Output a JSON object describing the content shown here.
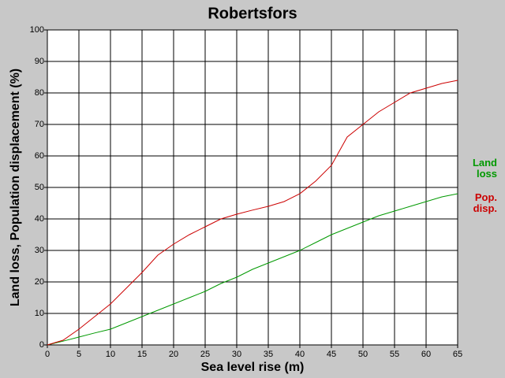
{
  "chart_data": {
    "type": "line",
    "title": "Robertsfors",
    "x_label": "Sea level rise (m)",
    "y_label": "Land loss, Population displacement (%)",
    "x": [
      0,
      2.5,
      5,
      7.5,
      10,
      12.5,
      15,
      17.5,
      20,
      22.5,
      25,
      27.5,
      30,
      32.5,
      35,
      37.5,
      40,
      42.5,
      45,
      47.5,
      50,
      52.5,
      55,
      57.5,
      60,
      62.5,
      65
    ],
    "series": [
      {
        "name": "Land loss",
        "color": "#009900",
        "values": [
          0,
          1.2,
          2.5,
          3.8,
          5,
          7,
          9,
          11,
          13,
          15,
          17,
          19.5,
          21.5,
          24,
          26,
          28,
          30,
          32.5,
          35,
          37,
          39,
          41,
          42.5,
          44,
          45.5,
          47,
          48
        ]
      },
      {
        "name": "Pop. disp.",
        "color": "#cc0000",
        "values": [
          0,
          1.5,
          5,
          9,
          13,
          18,
          23,
          28.5,
          32,
          35,
          37.5,
          40,
          41.5,
          42.8,
          44,
          45.5,
          48,
          52,
          57,
          66,
          70,
          74,
          77,
          80,
          81.5,
          83,
          84
        ]
      }
    ],
    "xlim": [
      0,
      65
    ],
    "xticks": [
      0,
      5,
      10,
      15,
      20,
      25,
      30,
      35,
      40,
      45,
      50,
      55,
      60,
      65
    ],
    "ylim": [
      0,
      100
    ],
    "yticks": [
      0,
      10,
      20,
      30,
      40,
      50,
      60,
      70,
      80,
      90,
      100
    ],
    "grid": true
  }
}
